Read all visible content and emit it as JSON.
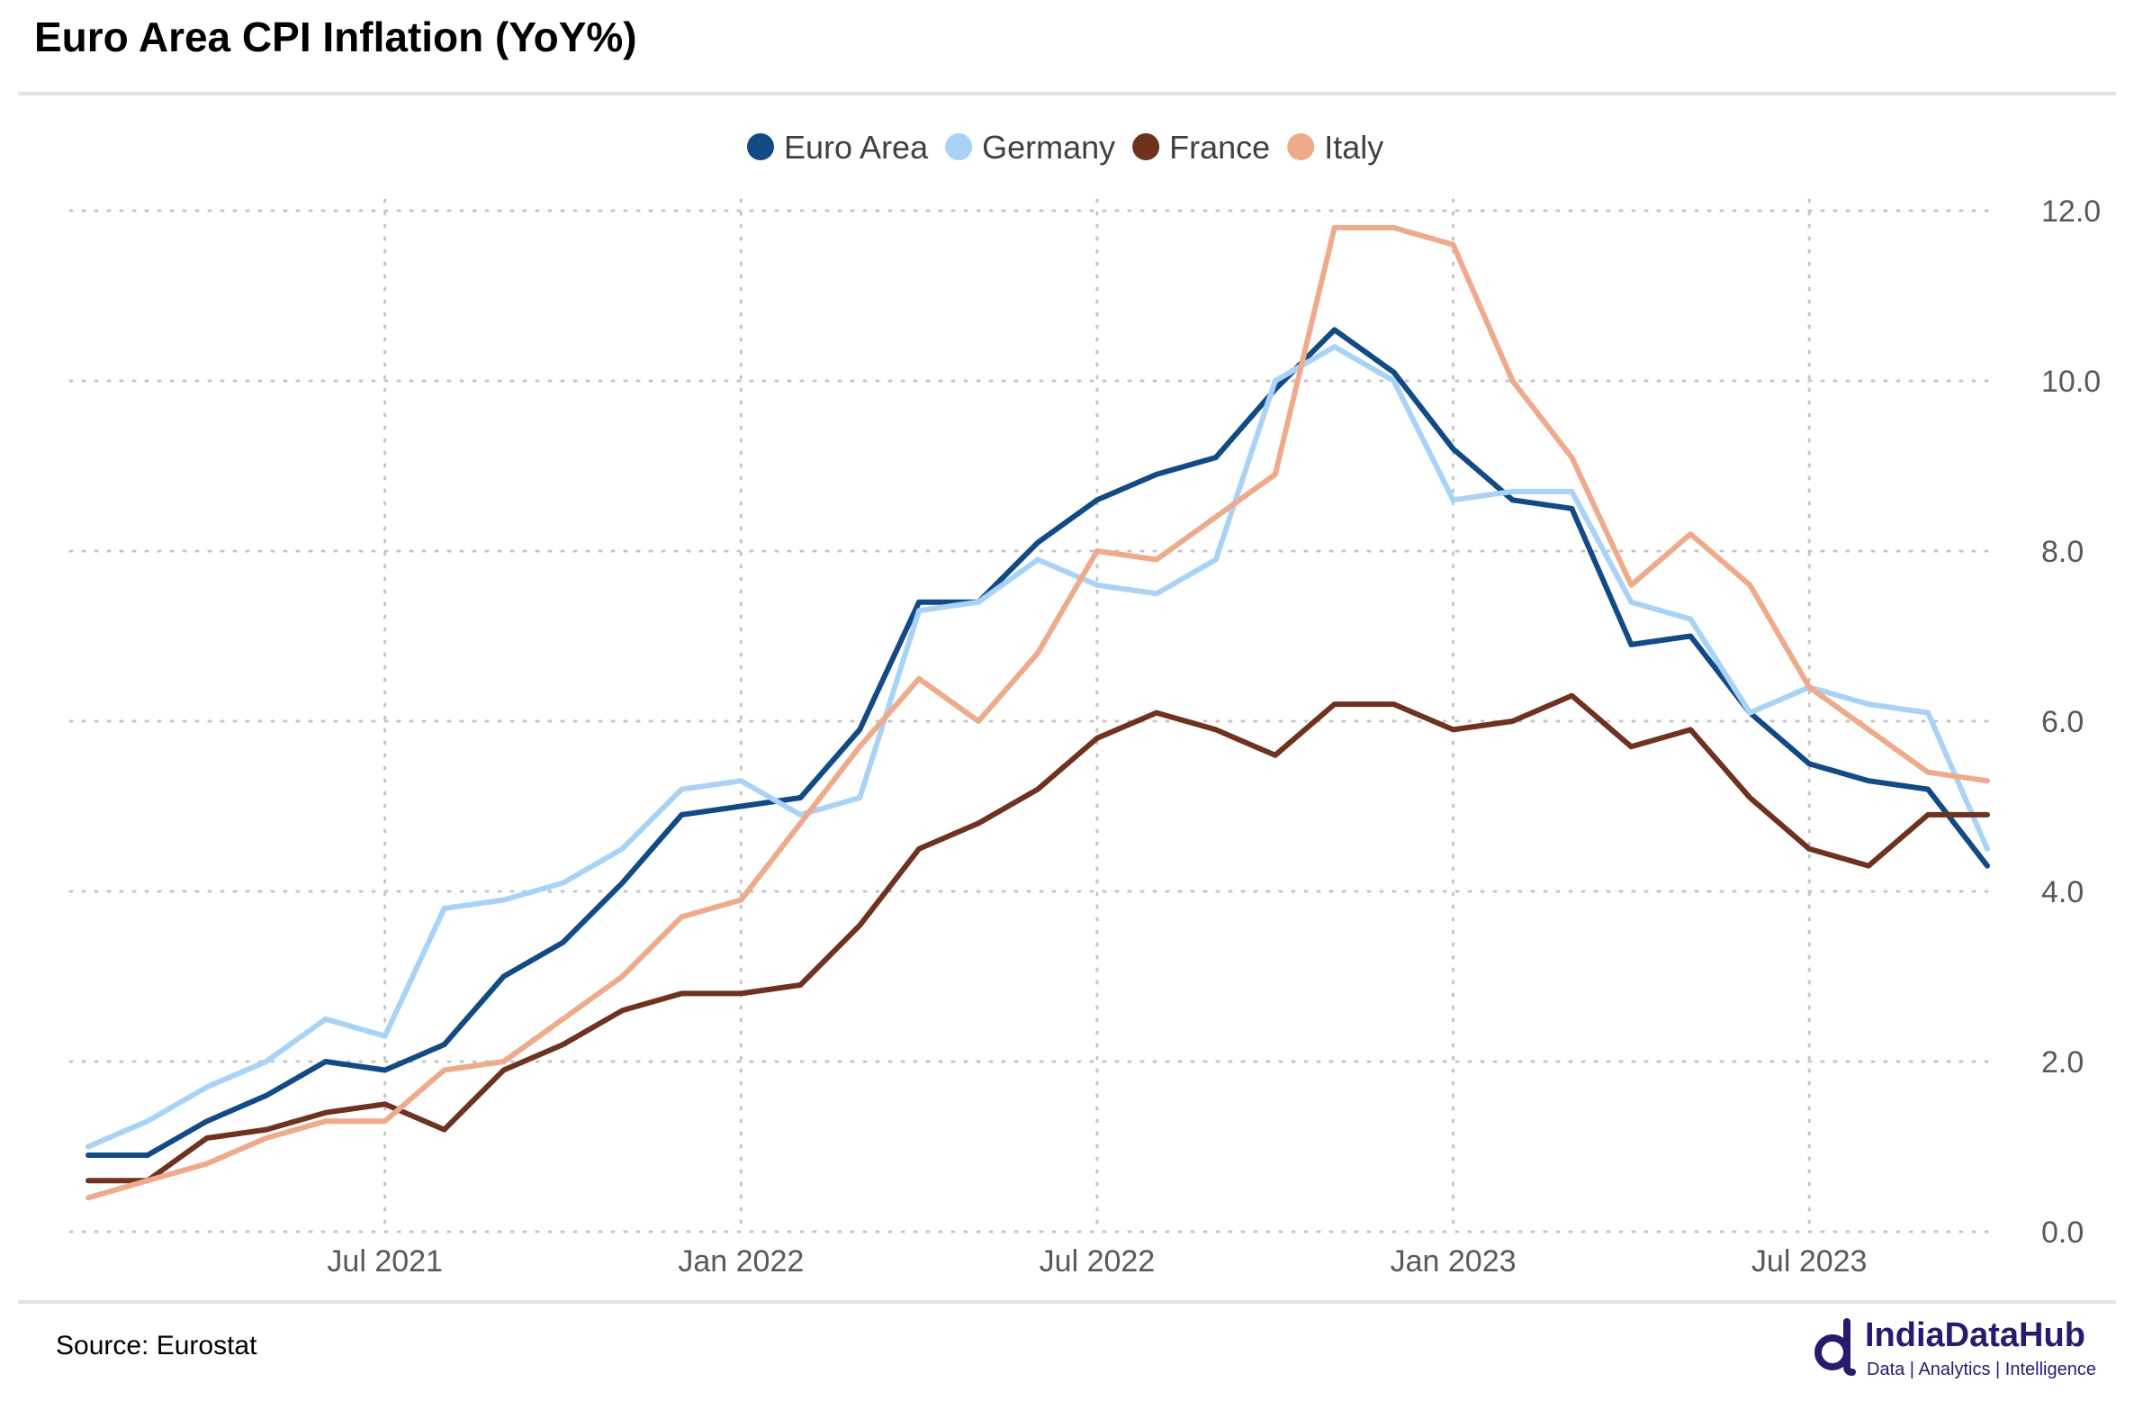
{
  "header": {
    "title": "Euro Area CPI Inflation (YoY%)"
  },
  "footer": {
    "source": "Source: Eurostat",
    "brand": "IndiaDataHub",
    "tagline": "Data | Analytics | Intelligence"
  },
  "chart_data": {
    "type": "line",
    "title": "Euro Area CPI Inflation (YoY%)",
    "xlabel": "",
    "ylabel": "",
    "x": [
      "2021-02",
      "2021-03",
      "2021-04",
      "2021-05",
      "2021-06",
      "2021-07",
      "2021-08",
      "2021-09",
      "2021-10",
      "2021-11",
      "2021-12",
      "2022-01",
      "2022-02",
      "2022-03",
      "2022-04",
      "2022-05",
      "2022-06",
      "2022-07",
      "2022-08",
      "2022-09",
      "2022-10",
      "2022-11",
      "2022-12",
      "2023-01",
      "2023-02",
      "2023-03",
      "2023-04",
      "2023-05",
      "2023-06",
      "2023-07",
      "2023-08",
      "2023-09",
      "2023-10"
    ],
    "x_tick_labels": [
      "Jul 2021",
      "Jan 2022",
      "Jul 2022",
      "Jan 2023",
      "Jul 2023"
    ],
    "x_tick_dates": [
      "2021-07",
      "2022-01",
      "2022-07",
      "2023-01",
      "2023-07"
    ],
    "ylim": [
      0,
      12
    ],
    "y_ticks": [
      "0.0",
      "2.0",
      "4.0",
      "6.0",
      "8.0",
      "10.0",
      "12.0"
    ],
    "y_axis_side": "right",
    "grid": "dotted",
    "legend_position": "top-center",
    "series": [
      {
        "name": "Euro Area",
        "color": "#124a86",
        "values": [
          0.9,
          0.9,
          1.3,
          1.6,
          2.0,
          1.9,
          2.2,
          3.0,
          3.4,
          4.1,
          4.9,
          5.0,
          5.1,
          5.9,
          7.4,
          7.4,
          8.1,
          8.6,
          8.9,
          9.1,
          9.9,
          10.6,
          10.1,
          9.2,
          8.6,
          8.5,
          6.9,
          7.0,
          6.1,
          5.5,
          5.3,
          5.2,
          4.3
        ]
      },
      {
        "name": "Germany",
        "color": "#a8d3f7",
        "values": [
          1.0,
          1.3,
          1.7,
          2.0,
          2.5,
          2.3,
          3.8,
          3.9,
          4.1,
          4.5,
          5.2,
          5.3,
          4.9,
          5.1,
          7.3,
          7.4,
          7.9,
          7.6,
          7.5,
          7.9,
          10.0,
          10.4,
          10.0,
          8.6,
          8.7,
          8.7,
          7.4,
          7.2,
          6.1,
          6.4,
          6.2,
          6.1,
          4.5
        ]
      },
      {
        "name": "France",
        "color": "#6e321f",
        "values": [
          0.6,
          0.6,
          1.1,
          1.2,
          1.4,
          1.5,
          1.2,
          1.9,
          2.2,
          2.6,
          2.8,
          2.8,
          2.9,
          3.6,
          4.5,
          4.8,
          5.2,
          5.8,
          6.1,
          5.9,
          5.6,
          6.2,
          6.2,
          5.9,
          6.0,
          6.3,
          5.7,
          5.9,
          5.1,
          4.5,
          4.3,
          4.9,
          4.9
        ]
      },
      {
        "name": "Italy",
        "color": "#eeaa8a",
        "values": [
          0.4,
          0.6,
          0.8,
          1.1,
          1.3,
          1.3,
          1.9,
          2.0,
          2.5,
          3.0,
          3.7,
          3.9,
          4.8,
          5.7,
          6.5,
          6.0,
          6.8,
          8.0,
          7.9,
          8.4,
          8.9,
          11.8,
          11.8,
          11.6,
          10.0,
          9.1,
          7.6,
          8.2,
          7.6,
          6.4,
          5.9,
          5.4,
          5.3
        ]
      }
    ]
  }
}
